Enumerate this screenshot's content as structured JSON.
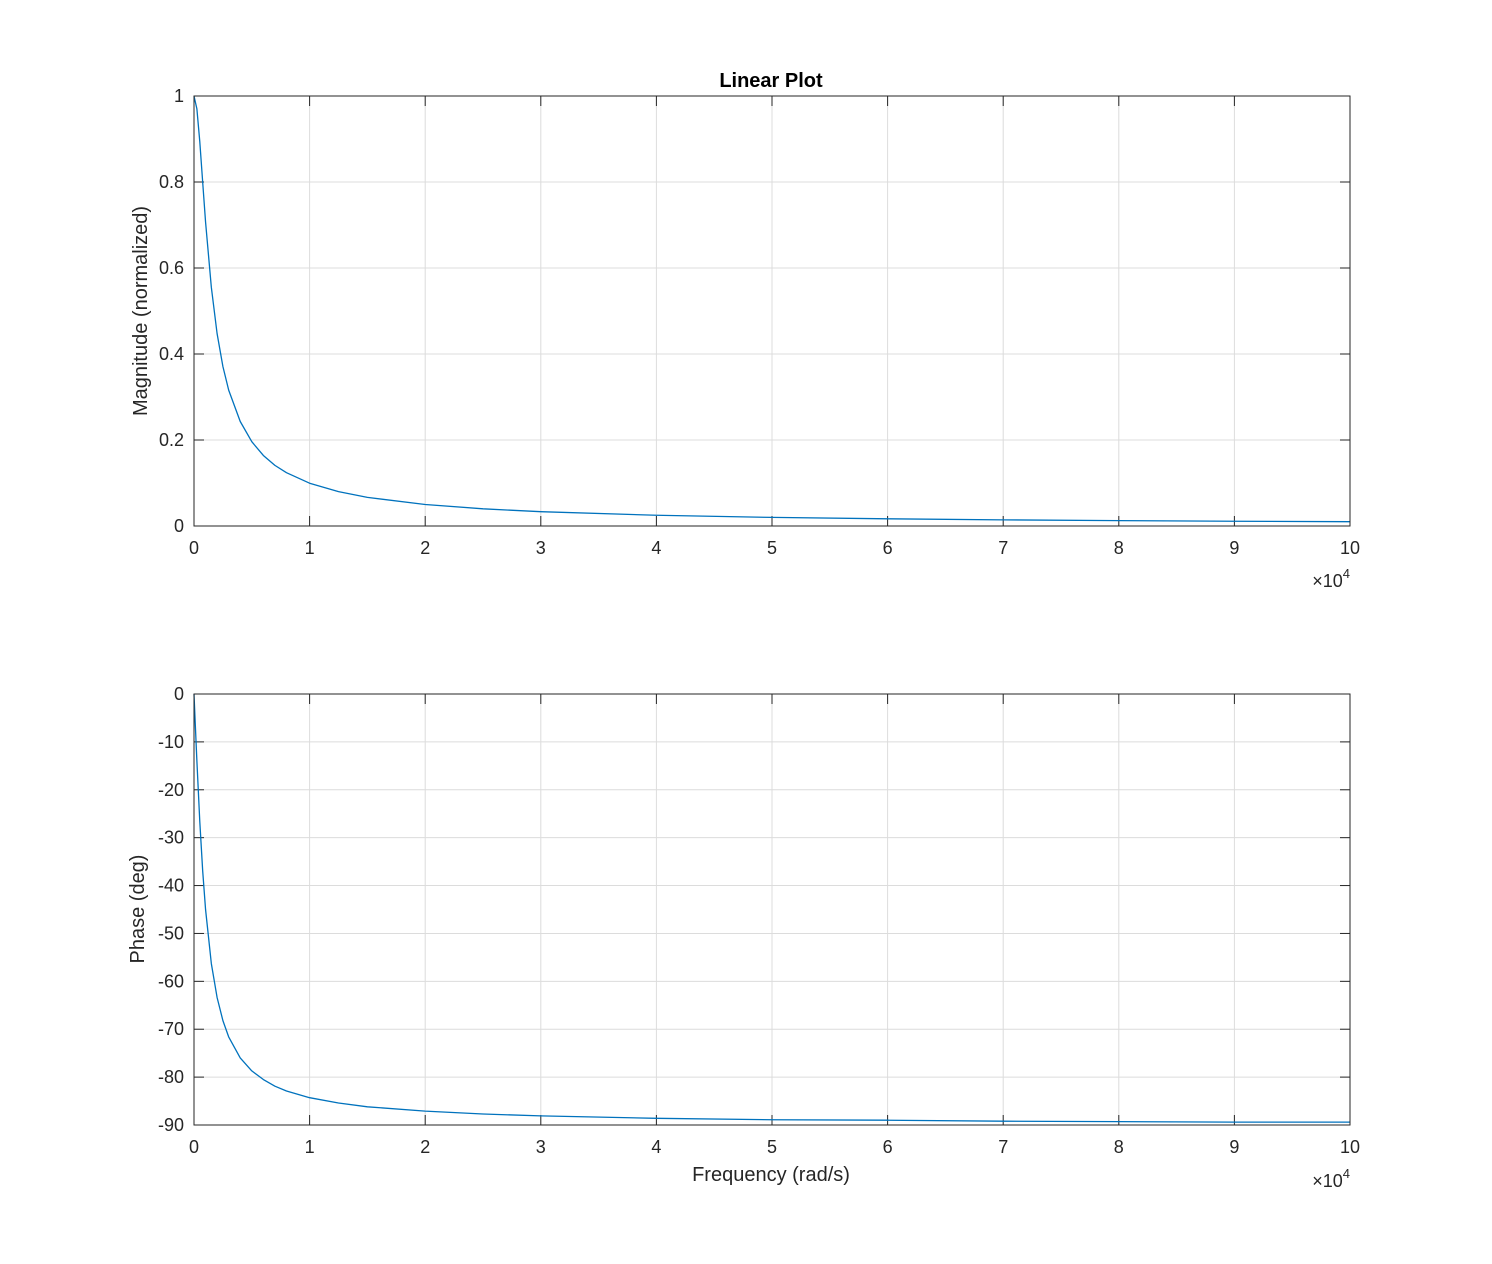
{
  "chart_data": [
    {
      "type": "line",
      "title": "Linear Plot",
      "xlabel": "",
      "ylabel": "Magnitude (normalized)",
      "xlim": [
        0,
        100000
      ],
      "ylim": [
        0,
        1
      ],
      "x_tick_values": [
        0,
        10000,
        20000,
        30000,
        40000,
        50000,
        60000,
        70000,
        80000,
        90000,
        100000
      ],
      "x_tick_labels": [
        "0",
        "1",
        "2",
        "3",
        "4",
        "5",
        "6",
        "7",
        "8",
        "9",
        "10"
      ],
      "x_exponent_label": "×10",
      "x_exponent_power": "4",
      "y_tick_values": [
        0,
        0.2,
        0.4,
        0.6,
        0.8,
        1
      ],
      "y_tick_labels": [
        "0",
        "0.2",
        "0.4",
        "0.6",
        "0.8",
        "1"
      ],
      "grid": true,
      "series": [
        {
          "color": "#0072BD",
          "x": [
            0,
            250,
            500,
            750,
            1000,
            1500,
            2000,
            2500,
            3000,
            4000,
            5000,
            6000,
            7000,
            8000,
            10000,
            12500,
            15000,
            20000,
            25000,
            30000,
            40000,
            50000,
            60000,
            70000,
            80000,
            90000,
            100000
          ],
          "y": [
            1,
            0.97,
            0.894,
            0.8,
            0.707,
            0.555,
            0.447,
            0.371,
            0.316,
            0.243,
            0.196,
            0.164,
            0.141,
            0.124,
            0.0995,
            0.08,
            0.0665,
            0.05,
            0.04,
            0.0333,
            0.025,
            0.02,
            0.0167,
            0.0143,
            0.0125,
            0.0111,
            0.01
          ]
        }
      ]
    },
    {
      "type": "line",
      "title": "",
      "xlabel": "Frequency (rad/s)",
      "ylabel": "Phase (deg)",
      "xlim": [
        0,
        100000
      ],
      "ylim": [
        -90,
        0
      ],
      "x_tick_values": [
        0,
        10000,
        20000,
        30000,
        40000,
        50000,
        60000,
        70000,
        80000,
        90000,
        100000
      ],
      "x_tick_labels": [
        "0",
        "1",
        "2",
        "3",
        "4",
        "5",
        "6",
        "7",
        "8",
        "9",
        "10"
      ],
      "x_exponent_label": "×10",
      "x_exponent_power": "4",
      "y_tick_values": [
        -90,
        -80,
        -70,
        -60,
        -50,
        -40,
        -30,
        -20,
        -10,
        0
      ],
      "y_tick_labels": [
        "-90",
        "-80",
        "-70",
        "-60",
        "-50",
        "-40",
        "-30",
        "-20",
        "-10",
        "0"
      ],
      "grid": true,
      "series": [
        {
          "color": "#0072BD",
          "x": [
            0,
            100,
            250,
            500,
            750,
            1000,
            1500,
            2000,
            2500,
            3000,
            4000,
            5000,
            6000,
            7000,
            8000,
            10000,
            12500,
            15000,
            20000,
            25000,
            30000,
            40000,
            50000,
            60000,
            70000,
            80000,
            90000,
            100000
          ],
          "y": [
            0,
            -5.7,
            -14.0,
            -26.6,
            -36.9,
            -45.0,
            -56.3,
            -63.4,
            -68.2,
            -71.6,
            -76.0,
            -78.7,
            -80.5,
            -81.9,
            -82.9,
            -84.3,
            -85.4,
            -86.2,
            -87.1,
            -87.7,
            -88.1,
            -88.6,
            -88.9,
            -89.0,
            -89.2,
            -89.3,
            -89.4,
            -89.4
          ]
        }
      ]
    }
  ]
}
